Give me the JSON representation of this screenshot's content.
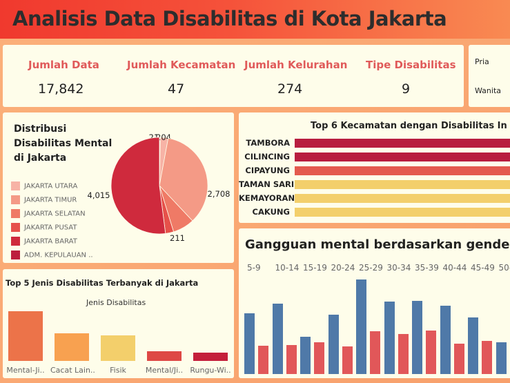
{
  "header": {
    "title": "Analisis Data Disabilitas di Kota Jakarta"
  },
  "kpis": [
    {
      "label": "Jumlah Data",
      "value": "17,842"
    },
    {
      "label": "Jumlah Kecamatan",
      "value": "47"
    },
    {
      "label": "Jumlah Kelurahan",
      "value": "274"
    },
    {
      "label": "Tipe Disabilitas",
      "value": "9"
    }
  ],
  "gender": {
    "pria": "Pria",
    "wanita": "Wanita"
  },
  "chart_data": [
    {
      "type": "pie",
      "title": "Distribusi Disabilitas Mental di Jakarta",
      "legend": [
        {
          "label": "JAKARTA UTARA",
          "color": "#f7b3a6"
        },
        {
          "label": "JAKARTA TIMUR",
          "color": "#f49a86"
        },
        {
          "label": "JAKARTA SELATAN",
          "color": "#ef7a66"
        },
        {
          "label": "JAKARTA PUSAT",
          "color": "#e6514a"
        },
        {
          "label": "JAKARTA BARAT",
          "color": "#cf2a3d"
        },
        {
          "label": "ADM. KEPULAUAN ..",
          "color": "#bd1f3e"
        }
      ],
      "slices": [
        {
          "label": "21",
          "value": 21,
          "color": "#f7b3a6"
        },
        {
          "label": "204",
          "value": 204,
          "color": "#f7b3a6"
        },
        {
          "label": "2,708",
          "value": 2708,
          "color": "#f49a86"
        },
        {
          "label": "",
          "value": 560,
          "color": "#ef7a66"
        },
        {
          "label": "211",
          "value": 211,
          "color": "#e6514a"
        },
        {
          "label": "4,015",
          "value": 4015,
          "color": "#cf2a3d"
        }
      ]
    },
    {
      "type": "bar",
      "orientation": "horizontal",
      "title": "Top 6 Kecamatan dengan Disabilitas In",
      "categories": [
        "TAMBORA",
        "CILINCING",
        "CIPAYUNG",
        "TAMAN SARI",
        "KEMAYORAN",
        "CAKUNG"
      ],
      "colors": [
        "#b81d3f",
        "#b81d3f",
        "#e45a4e",
        "#f3cf6b",
        "#f3cf6b",
        "#f3cf6b"
      ]
    },
    {
      "type": "bar",
      "title": "Top 5 Jenis Disabilitas Terbanyak di Jakarta",
      "subtitle": "Jenis Disabilitas",
      "categories": [
        "Mental-Ji..",
        "Cacat Lain..",
        "Fisik",
        "Mental/Ji..",
        "Rungu-Wi.."
      ],
      "values": [
        100,
        56,
        52,
        19,
        17
      ],
      "colors": [
        "#ec7349",
        "#f8a150",
        "#f3cf6b",
        "#de4845",
        "#c41f3b"
      ]
    },
    {
      "type": "bar",
      "title": "Gangguan mental berdasarkan gender (",
      "categories": [
        "5-9",
        "10-14",
        "15-19",
        "20-24",
        "25-29",
        "30-34",
        "35-39",
        "40-44",
        "45-49",
        "50-"
      ],
      "series": [
        {
          "color": "#4f79a8",
          "values": [
            88,
            102,
            54,
            86,
            137,
            105,
            106,
            99,
            82,
            46
          ]
        },
        {
          "color": "#e15759",
          "values": [
            41,
            42,
            46,
            40,
            62,
            58,
            63,
            44,
            48,
            47
          ]
        }
      ]
    }
  ]
}
